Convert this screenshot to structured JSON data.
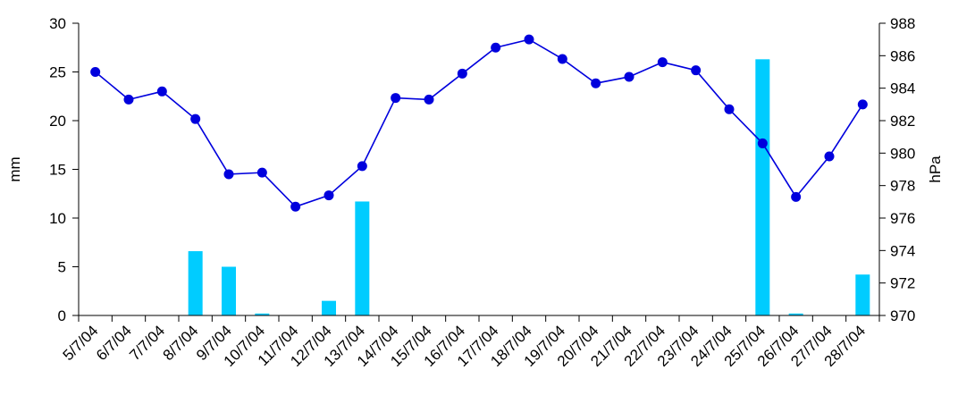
{
  "chart_data": {
    "type": "bar",
    "categories": [
      "5/7/04",
      "6/7/04",
      "7/7/04",
      "8/7/04",
      "9/7/04",
      "10/7/04",
      "11/7/04",
      "12/7/04",
      "13/7/04",
      "14/7/04",
      "15/7/04",
      "16/7/04",
      "17/7/04",
      "18/7/04",
      "19/7/04",
      "20/7/04",
      "21/7/04",
      "22/7/04",
      "23/7/04",
      "24/7/04",
      "25/7/04",
      "26/7/04",
      "27/7/04",
      "28/7/04"
    ],
    "series": [
      {
        "axis": "left",
        "type": "bar",
        "color": "#00ccff",
        "values": [
          0,
          0,
          0,
          6.6,
          5.0,
          0.2,
          0,
          1.5,
          11.7,
          0,
          0,
          0,
          0,
          0,
          0,
          0,
          0,
          0,
          0,
          0,
          26.3,
          0.2,
          0,
          4.2
        ]
      },
      {
        "axis": "right",
        "type": "line",
        "color": "#0000dd",
        "values": [
          985.0,
          983.3,
          983.8,
          982.1,
          978.7,
          978.8,
          976.7,
          977.4,
          979.2,
          983.4,
          983.3,
          984.9,
          986.5,
          987.0,
          985.8,
          984.3,
          984.7,
          985.6,
          985.1,
          982.7,
          980.6,
          977.3,
          979.8,
          983.0
        ]
      }
    ],
    "ylabel": "mm",
    "y2label": "hPa",
    "ylim": [
      0,
      30
    ],
    "y2lim": [
      970,
      988
    ],
    "yticks": [
      "0",
      "5",
      "10",
      "15",
      "20",
      "25",
      "30"
    ],
    "y2ticks": [
      "970",
      "972",
      "974",
      "976",
      "978",
      "980",
      "982",
      "984",
      "986",
      "988"
    ],
    "grid": false,
    "legend": "none"
  }
}
